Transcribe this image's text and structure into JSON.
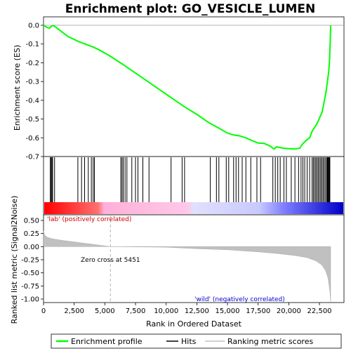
{
  "chart_data": {
    "type": "line",
    "title": "Enrichment plot: GO_VESICLE_LUMEN",
    "xlabel": "Rank in Ordered Dataset",
    "xlim": [
      0,
      24500
    ],
    "x_ticks": [
      0,
      2500,
      5000,
      7500,
      10000,
      12500,
      15000,
      17500,
      20000,
      22500
    ],
    "x_tick_labels": [
      "0",
      "2,500",
      "5,000",
      "7,500",
      "10,000",
      "12,500",
      "15,000",
      "17,500",
      "20,000",
      "22,500"
    ],
    "es_panel": {
      "ylabel": "Enrichment score (ES)",
      "ylim": [
        -0.7,
        0.02
      ],
      "y_ticks": [
        0.0,
        -0.1,
        -0.2,
        -0.3,
        -0.4,
        -0.5,
        -0.6,
        -0.7
      ],
      "y_tick_labels": [
        "0.0",
        "-0.1",
        "-0.2",
        "-0.3",
        "-0.4",
        "-0.5",
        "-0.6",
        "-0.7"
      ],
      "series_name": "Enrichment profile",
      "color": "#00ff00",
      "points": [
        [
          0,
          0
        ],
        [
          300,
          -0.012
        ],
        [
          500,
          -0.015
        ],
        [
          600,
          -0.008
        ],
        [
          700,
          -0.003
        ],
        [
          800,
          -0.002
        ],
        [
          900,
          -0.005
        ],
        [
          1500,
          -0.035
        ],
        [
          2000,
          -0.06
        ],
        [
          2800,
          -0.085
        ],
        [
          3200,
          -0.095
        ],
        [
          4000,
          -0.115
        ],
        [
          4500,
          -0.13
        ],
        [
          5451,
          -0.165
        ],
        [
          6500,
          -0.21
        ],
        [
          7500,
          -0.255
        ],
        [
          8500,
          -0.3
        ],
        [
          9500,
          -0.345
        ],
        [
          10500,
          -0.39
        ],
        [
          11500,
          -0.435
        ],
        [
          12500,
          -0.475
        ],
        [
          13500,
          -0.52
        ],
        [
          14200,
          -0.545
        ],
        [
          15000,
          -0.575
        ],
        [
          15500,
          -0.585
        ],
        [
          16000,
          -0.59
        ],
        [
          16500,
          -0.6
        ],
        [
          17000,
          -0.615
        ],
        [
          17500,
          -0.628
        ],
        [
          18000,
          -0.63
        ],
        [
          18500,
          -0.645
        ],
        [
          18800,
          -0.66
        ],
        [
          19000,
          -0.648
        ],
        [
          19500,
          -0.655
        ],
        [
          20000,
          -0.658
        ],
        [
          20500,
          -0.66
        ],
        [
          20900,
          -0.655
        ],
        [
          21100,
          -0.635
        ],
        [
          21400,
          -0.615
        ],
        [
          21700,
          -0.6
        ],
        [
          21900,
          -0.565
        ],
        [
          22100,
          -0.545
        ],
        [
          22300,
          -0.525
        ],
        [
          22500,
          -0.495
        ],
        [
          22700,
          -0.465
        ],
        [
          22850,
          -0.42
        ],
        [
          22950,
          -0.385
        ],
        [
          23050,
          -0.35
        ],
        [
          23150,
          -0.3
        ],
        [
          23250,
          -0.25
        ],
        [
          23320,
          -0.19
        ],
        [
          23360,
          -0.12
        ],
        [
          23390,
          -0.06
        ],
        [
          23410,
          0
        ]
      ]
    },
    "hits": {
      "series_name": "Hits",
      "positions": [
        550,
        620,
        680,
        740,
        900,
        2800,
        3100,
        3350,
        3650,
        3900,
        4050,
        4150,
        6300,
        6400,
        6500,
        6650,
        6800,
        7200,
        7500,
        7700,
        8100,
        8600,
        10400,
        11300,
        11500,
        13600,
        14100,
        14300,
        14900,
        15100,
        15500,
        15700,
        15900,
        16200,
        16500,
        16900,
        17400,
        17700,
        18700,
        18900,
        19100,
        19300,
        19600,
        19800,
        20200,
        20500,
        20800,
        21000,
        21150,
        21300,
        21500,
        21700,
        21900,
        22000,
        22100,
        22200,
        22300,
        22400,
        22500,
        22600,
        22700,
        22800,
        22900,
        23000,
        23100,
        23150,
        23200,
        23250,
        23300,
        23350
      ]
    },
    "metric_panel": {
      "ylabel": "Ranked list metric (Signal2Noise)",
      "ylim": [
        -1.05,
        0.55
      ],
      "y_ticks": [
        0.5,
        0.25,
        0.0,
        -0.25,
        -0.5,
        -0.75,
        -1.0
      ],
      "y_tick_labels": [
        "0.50",
        "0.25",
        "0.00",
        "-0.25",
        "-0.50",
        "-0.75",
        "-1.00"
      ],
      "series_name": "Ranking metric scores",
      "points": [
        [
          0,
          0.3
        ],
        [
          100,
          0.22
        ],
        [
          300,
          0.18
        ],
        [
          700,
          0.15
        ],
        [
          1500,
          0.12
        ],
        [
          2500,
          0.09
        ],
        [
          3500,
          0.06
        ],
        [
          4500,
          0.03
        ],
        [
          5451,
          0.0
        ],
        [
          10000,
          -0.01
        ],
        [
          12500,
          -0.04
        ],
        [
          15000,
          -0.06
        ],
        [
          17500,
          -0.1
        ],
        [
          19000,
          -0.13
        ],
        [
          20500,
          -0.17
        ],
        [
          21500,
          -0.21
        ],
        [
          22200,
          -0.27
        ],
        [
          22700,
          -0.35
        ],
        [
          23000,
          -0.46
        ],
        [
          23200,
          -0.6
        ],
        [
          23350,
          -0.85
        ],
        [
          23410,
          -1.05
        ]
      ],
      "zero_cross_label": "Zero cross at 5451",
      "pos_label": "'lab' (positively correlated)",
      "neg_label": "'wild' (negatively correlated)"
    },
    "legend": {
      "placement": "bottom",
      "items": [
        {
          "label": "Enrichment profile",
          "color": "#00ff00"
        },
        {
          "label": "Hits",
          "color": "#000000"
        },
        {
          "label": "Ranking metric scores",
          "color": "#c0c0c0"
        }
      ]
    }
  }
}
